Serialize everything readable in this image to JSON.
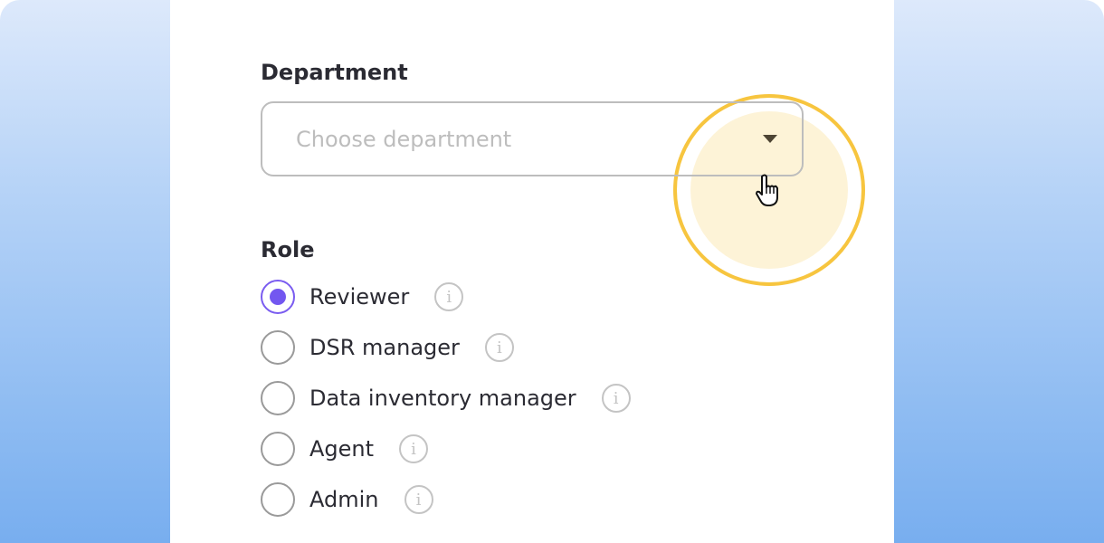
{
  "department": {
    "label": "Department",
    "placeholder": "Choose department"
  },
  "role": {
    "label": "Role",
    "options": [
      {
        "label": "Reviewer",
        "selected": true
      },
      {
        "label": "DSR manager",
        "selected": false
      },
      {
        "label": "Data inventory manager",
        "selected": false
      },
      {
        "label": "Agent",
        "selected": false
      },
      {
        "label": "Admin",
        "selected": false
      }
    ]
  },
  "icons": {
    "info": "i"
  },
  "colors": {
    "accent": "#7357f0",
    "highlight": "#f7c53f"
  }
}
